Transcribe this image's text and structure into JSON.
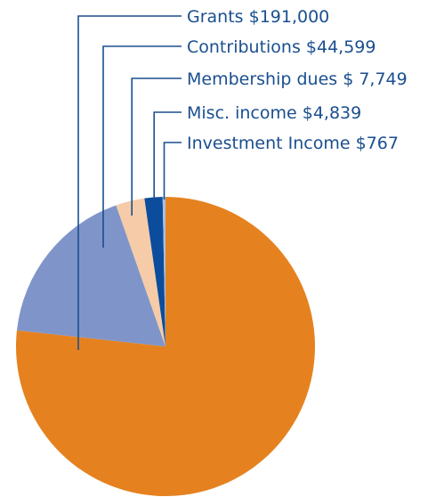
{
  "chart_data": {
    "type": "pie",
    "title": "",
    "slices": [
      {
        "label": "Grants $191,000",
        "name": "Grants",
        "value": 191000,
        "color": "#e5821f"
      },
      {
        "label": "Contributions $44,599",
        "name": "Contributions",
        "value": 44599,
        "color": "#7f95c9"
      },
      {
        "label": "Membership dues $ 7,749",
        "name": "Membership dues",
        "value": 7749,
        "color": "#f5cba8"
      },
      {
        "label": "Misc. income $4,839",
        "name": "Misc. income",
        "value": 4839,
        "color": "#0b4d9c"
      },
      {
        "label": "Investment Income $767",
        "name": "Investment Income",
        "value": 767,
        "color": "#a9bfe4"
      }
    ],
    "leader_color": "#1a4f8f",
    "legend": "leader-line labels, top-right"
  }
}
